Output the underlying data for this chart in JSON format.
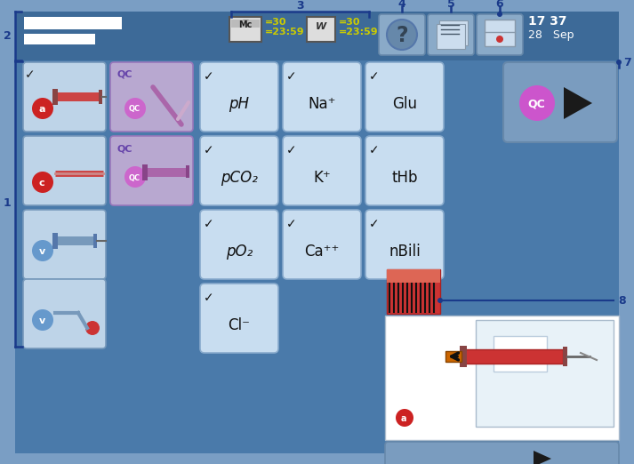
{
  "bg_outer": "#7a9ec4",
  "bg_main": "#4a7aaa",
  "btn_light": "#bed4e8",
  "btn_qc_bg": "#c0aad8",
  "btn_analyte": "#c8ddf0",
  "yellow": "#cccc00",
  "white": "#ffffff",
  "arrow_blue": "#1a3a8a",
  "time_text": "17 37",
  "date_text": "28   Sep",
  "analyte_grid": [
    [
      "pH",
      "Na⁺",
      "Glu"
    ],
    [
      "pCO₂",
      "K⁺",
      "tHb"
    ],
    [
      "pO₂",
      "Ca⁺⁺",
      "nBili"
    ],
    [
      "Cl⁻",
      "",
      ""
    ]
  ],
  "figw": 7.13,
  "figh": 5.22,
  "dpi": 100
}
